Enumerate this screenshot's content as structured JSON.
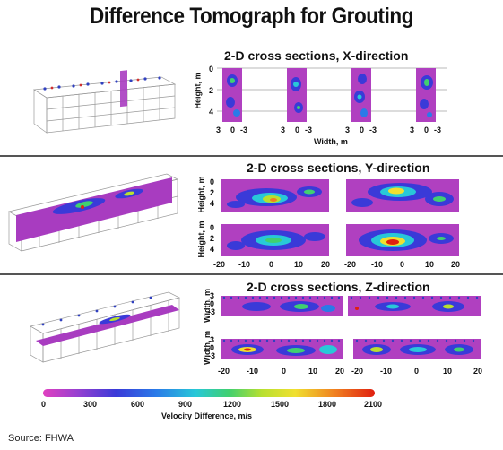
{
  "title": "Difference Tomograph for Grouting",
  "sections": {
    "x": {
      "title": "2-D cross sections, X-direction",
      "ylabel": "Height, m",
      "xlabel": "Width, m",
      "yticks": [
        "0",
        "2",
        "4"
      ],
      "xticks": [
        "3",
        "0",
        "-3"
      ]
    },
    "y": {
      "title": "2-D cross sections, Y-direction",
      "ylabel_top": "Height, m",
      "ylabel_bottom": "Height, m",
      "yticks": [
        "0",
        "2",
        "4"
      ],
      "xticks_left": [
        "-20",
        "-10",
        "0",
        "10",
        "20"
      ],
      "xticks_right": [
        "-20",
        "-10",
        "0",
        "10",
        "20"
      ]
    },
    "z": {
      "title": "2-D cross sections, Z-direction",
      "ylabel_top": "Width, m",
      "ylabel_bottom": "Width, m",
      "yticks": [
        "3",
        "0",
        "-3"
      ],
      "xticks_left": [
        "-20",
        "-10",
        "0",
        "10",
        "20"
      ],
      "xticks_right": [
        "-20",
        "-10",
        "0",
        "10",
        "20"
      ]
    }
  },
  "colorbar": {
    "ticks": [
      "0",
      "300",
      "600",
      "900",
      "1200",
      "1500",
      "1800",
      "2100"
    ],
    "label": "Velocity Difference, m/s",
    "colors": [
      "#e040c0",
      "#3a3ad8",
      "#28c8d8",
      "#40d070",
      "#f0e030",
      "#e02010"
    ]
  },
  "source": "Source: FHWA"
}
